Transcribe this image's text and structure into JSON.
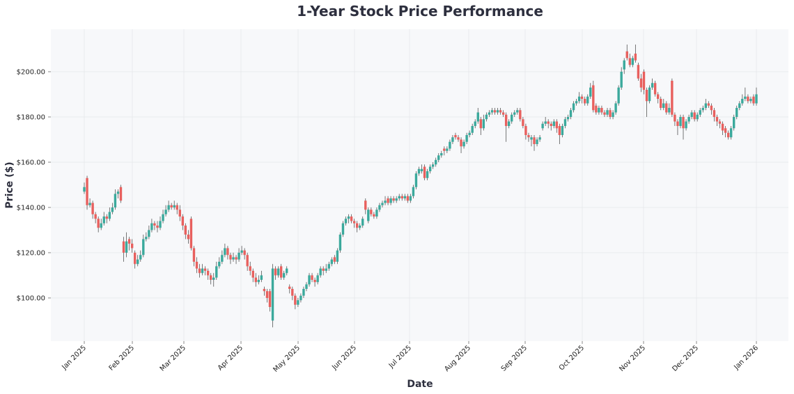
{
  "chart_data": {
    "type": "candlestick",
    "title": "1-Year Stock Price Performance",
    "xlabel": "Date",
    "ylabel": "Price ($)",
    "ylim": [
      81,
      219
    ],
    "grid": true,
    "colors": {
      "up": "#3ba99c",
      "down": "#e8605e",
      "plot_bg": "#f7f8fa"
    },
    "y_ticks": [
      "$100.00",
      "$120.00",
      "$140.00",
      "$160.00",
      "$180.00",
      "$200.00"
    ],
    "y_tick_values": [
      100,
      120,
      140,
      160,
      180,
      200
    ],
    "x_ticks": [
      "Jan 2025",
      "Feb 2025",
      "Mar 2025",
      "Apr 2025",
      "May 2025",
      "Jun 2025",
      "Jul 2025",
      "Aug 2025",
      "Sep 2025",
      "Oct 2025",
      "Nov 2025",
      "Dec 2025",
      "Jan 2026"
    ],
    "ohlc_columns": [
      "open",
      "high",
      "low",
      "close"
    ],
    "ohlc": [
      [
        147,
        151,
        146,
        149
      ],
      [
        153,
        154,
        139,
        141
      ],
      [
        141,
        144,
        140,
        142
      ],
      [
        142,
        143,
        135,
        137
      ],
      [
        137,
        138,
        133,
        135
      ],
      [
        135,
        136,
        129,
        131
      ],
      [
        131,
        135,
        130,
        133
      ],
      [
        133,
        138,
        132,
        136
      ],
      [
        136,
        137,
        133,
        135
      ],
      [
        135,
        140,
        134,
        138
      ],
      [
        138,
        142,
        137,
        140
      ],
      [
        140,
        148,
        139,
        146
      ],
      [
        146,
        148,
        144,
        147
      ],
      [
        149,
        150,
        142,
        143
      ],
      [
        125,
        127,
        116,
        120
      ],
      [
        120,
        129,
        118,
        125
      ],
      [
        126,
        127,
        121,
        124
      ],
      [
        124,
        126,
        120,
        122
      ],
      [
        120,
        121,
        113,
        115
      ],
      [
        115,
        119,
        114,
        117
      ],
      [
        117,
        121,
        116,
        119
      ],
      [
        119,
        128,
        118,
        126
      ],
      [
        126,
        129,
        125,
        127
      ],
      [
        127,
        132,
        126,
        130
      ],
      [
        130,
        135,
        129,
        133
      ],
      [
        133,
        134,
        130,
        132
      ],
      [
        132,
        134,
        129,
        131
      ],
      [
        131,
        136,
        130,
        134
      ],
      [
        134,
        139,
        133,
        137
      ],
      [
        137,
        141,
        136,
        139
      ],
      [
        139,
        143,
        138,
        141
      ],
      [
        141,
        142,
        139,
        140
      ],
      [
        140,
        143,
        139,
        141
      ],
      [
        141,
        142,
        137,
        139
      ],
      [
        139,
        141,
        134,
        136
      ],
      [
        136,
        137,
        130,
        132
      ],
      [
        132,
        133,
        126,
        128
      ],
      [
        128,
        130,
        124,
        126
      ],
      [
        135,
        136,
        121,
        122
      ],
      [
        122,
        123,
        114,
        116
      ],
      [
        116,
        118,
        111,
        113
      ],
      [
        113,
        115,
        109,
        111
      ],
      [
        111,
        115,
        110,
        113
      ],
      [
        113,
        114,
        110,
        112
      ],
      [
        112,
        113,
        108,
        110
      ],
      [
        110,
        111,
        106,
        108
      ],
      [
        108,
        111,
        105,
        109
      ],
      [
        109,
        116,
        108,
        114
      ],
      [
        114,
        118,
        113,
        116
      ],
      [
        116,
        121,
        115,
        119
      ],
      [
        119,
        124,
        118,
        122
      ],
      [
        122,
        123,
        117,
        119
      ],
      [
        119,
        120,
        115,
        117
      ],
      [
        117,
        120,
        116,
        118
      ],
      [
        118,
        119,
        115,
        117
      ],
      [
        117,
        122,
        116,
        120
      ],
      [
        120,
        123,
        119,
        121
      ],
      [
        121,
        122,
        117,
        119
      ],
      [
        119,
        120,
        112,
        114
      ],
      [
        114,
        116,
        110,
        112
      ],
      [
        112,
        113,
        107,
        109
      ],
      [
        109,
        111,
        105,
        107
      ],
      [
        107,
        110,
        106,
        108
      ],
      [
        108,
        112,
        107,
        110
      ],
      [
        104,
        105,
        101,
        103
      ],
      [
        103,
        104,
        98,
        100
      ],
      [
        103,
        104,
        94,
        96
      ],
      [
        90,
        115,
        87,
        113
      ],
      [
        113,
        114,
        108,
        110
      ],
      [
        110,
        114,
        109,
        113
      ],
      [
        114,
        115,
        108,
        109
      ],
      [
        109,
        112,
        108,
        111
      ],
      [
        111,
        114,
        110,
        113
      ],
      [
        105,
        106,
        102,
        104
      ],
      [
        104,
        105,
        99,
        101
      ],
      [
        101,
        102,
        95,
        97
      ],
      [
        97,
        100,
        96,
        99
      ],
      [
        99,
        102,
        98,
        101
      ],
      [
        101,
        105,
        100,
        104
      ],
      [
        104,
        107,
        103,
        106
      ],
      [
        106,
        111,
        105,
        110
      ],
      [
        110,
        111,
        107,
        108
      ],
      [
        108,
        109,
        105,
        107
      ],
      [
        107,
        111,
        106,
        110
      ],
      [
        110,
        114,
        109,
        113
      ],
      [
        113,
        114,
        110,
        112
      ],
      [
        112,
        115,
        111,
        113
      ],
      [
        113,
        116,
        112,
        115
      ],
      [
        115,
        118,
        114,
        117
      ],
      [
        118,
        119,
        115,
        116
      ],
      [
        116,
        122,
        115,
        121
      ],
      [
        121,
        129,
        120,
        128
      ],
      [
        128,
        134,
        127,
        133
      ],
      [
        133,
        136,
        132,
        135
      ],
      [
        135,
        137,
        133,
        136
      ],
      [
        136,
        137,
        133,
        134
      ],
      [
        134,
        135,
        131,
        133
      ],
      [
        133,
        134,
        129,
        131
      ],
      [
        131,
        133,
        130,
        132
      ],
      [
        132,
        136,
        131,
        135
      ],
      [
        143,
        144,
        137,
        139
      ],
      [
        134,
        140,
        133,
        139
      ],
      [
        139,
        140,
        136,
        137
      ],
      [
        137,
        138,
        135,
        136
      ],
      [
        136,
        140,
        135,
        139
      ],
      [
        139,
        142,
        138,
        141
      ],
      [
        141,
        143,
        140,
        142
      ],
      [
        142,
        145,
        141,
        143
      ],
      [
        144,
        145,
        141,
        142
      ],
      [
        142,
        145,
        141,
        144
      ],
      [
        144,
        145,
        142,
        143
      ],
      [
        143,
        145,
        142,
        144
      ],
      [
        144,
        146,
        143,
        145
      ],
      [
        145,
        146,
        143,
        144
      ],
      [
        144,
        146,
        143,
        145
      ],
      [
        145,
        146,
        142,
        143
      ],
      [
        143,
        146,
        142,
        145
      ],
      [
        145,
        150,
        144,
        149
      ],
      [
        149,
        156,
        148,
        155
      ],
      [
        155,
        158,
        154,
        157
      ],
      [
        156,
        159,
        155,
        157
      ],
      [
        158,
        159,
        152,
        153
      ],
      [
        153,
        157,
        152,
        156
      ],
      [
        156,
        159,
        155,
        158
      ],
      [
        158,
        160,
        157,
        159
      ],
      [
        159,
        162,
        158,
        161
      ],
      [
        161,
        164,
        160,
        163
      ],
      [
        163,
        165,
        162,
        164
      ],
      [
        166,
        167,
        163,
        165
      ],
      [
        165,
        167,
        164,
        166
      ],
      [
        166,
        170,
        165,
        169
      ],
      [
        169,
        172,
        168,
        171
      ],
      [
        172,
        173,
        170,
        171
      ],
      [
        171,
        172,
        169,
        170
      ],
      [
        170,
        171,
        164,
        167
      ],
      [
        167,
        170,
        166,
        169
      ],
      [
        169,
        173,
        168,
        172
      ],
      [
        172,
        174,
        171,
        173
      ],
      [
        173,
        177,
        172,
        176
      ],
      [
        176,
        179,
        175,
        178
      ],
      [
        178,
        184,
        177,
        182
      ],
      [
        179,
        180,
        172,
        175
      ],
      [
        175,
        181,
        174,
        179
      ],
      [
        179,
        182,
        178,
        181
      ],
      [
        181,
        183,
        180,
        182
      ],
      [
        182,
        184,
        181,
        183
      ],
      [
        183,
        184,
        181,
        182
      ],
      [
        182,
        184,
        181,
        183
      ],
      [
        183,
        184,
        181,
        182
      ],
      [
        182,
        183,
        180,
        181
      ],
      [
        181,
        182,
        169,
        176
      ],
      [
        176,
        179,
        175,
        178
      ],
      [
        178,
        182,
        177,
        181
      ],
      [
        181,
        183,
        180,
        182
      ],
      [
        182,
        184,
        181,
        183
      ],
      [
        183,
        184,
        178,
        179
      ],
      [
        179,
        180,
        175,
        176
      ],
      [
        176,
        177,
        170,
        172
      ],
      [
        172,
        173,
        169,
        171
      ],
      [
        170,
        172,
        167,
        171
      ],
      [
        171,
        172,
        165,
        168
      ],
      [
        168,
        171,
        167,
        170
      ],
      [
        170,
        172,
        169,
        171
      ],
      [
        175,
        178,
        174,
        177
      ],
      [
        177,
        180,
        176,
        178
      ],
      [
        178,
        179,
        175,
        177
      ],
      [
        177,
        178,
        174,
        176
      ],
      [
        176,
        179,
        175,
        178
      ],
      [
        178,
        179,
        173,
        175
      ],
      [
        176,
        177,
        168,
        172
      ],
      [
        172,
        177,
        171,
        176
      ],
      [
        176,
        180,
        175,
        179
      ],
      [
        179,
        181,
        178,
        180
      ],
      [
        180,
        184,
        179,
        183
      ],
      [
        183,
        187,
        182,
        186
      ],
      [
        186,
        188,
        185,
        187
      ],
      [
        187,
        191,
        186,
        189
      ],
      [
        189,
        190,
        186,
        188
      ],
      [
        188,
        189,
        185,
        186
      ],
      [
        186,
        190,
        185,
        189
      ],
      [
        189,
        195,
        188,
        193
      ],
      [
        194,
        196,
        182,
        183
      ],
      [
        185,
        186,
        181,
        182
      ],
      [
        182,
        185,
        181,
        184
      ],
      [
        184,
        185,
        181,
        182
      ],
      [
        182,
        183,
        180,
        181
      ],
      [
        181,
        184,
        180,
        183
      ],
      [
        183,
        184,
        179,
        180
      ],
      [
        180,
        183,
        179,
        182
      ],
      [
        182,
        187,
        181,
        186
      ],
      [
        186,
        194,
        185,
        193
      ],
      [
        193,
        202,
        192,
        200
      ],
      [
        201,
        206,
        199,
        205
      ],
      [
        209,
        212,
        205,
        206
      ],
      [
        206,
        208,
        202,
        203
      ],
      [
        203,
        207,
        202,
        206
      ],
      [
        208,
        212,
        204,
        205
      ],
      [
        203,
        204,
        196,
        197
      ],
      [
        197,
        199,
        191,
        193
      ],
      [
        200,
        201,
        190,
        192
      ],
      [
        192,
        193,
        180,
        187
      ],
      [
        187,
        194,
        186,
        193
      ],
      [
        193,
        197,
        192,
        195
      ],
      [
        195,
        196,
        189,
        190
      ],
      [
        190,
        191,
        186,
        188
      ],
      [
        188,
        189,
        183,
        184
      ],
      [
        184,
        188,
        183,
        186
      ],
      [
        186,
        187,
        181,
        182
      ],
      [
        182,
        186,
        181,
        184
      ],
      [
        196,
        197,
        180,
        181
      ],
      [
        181,
        182,
        176,
        178
      ],
      [
        178,
        179,
        172,
        176
      ],
      [
        176,
        181,
        175,
        180
      ],
      [
        180,
        181,
        170,
        175
      ],
      [
        175,
        179,
        174,
        178
      ],
      [
        178,
        181,
        177,
        180
      ],
      [
        180,
        183,
        179,
        182
      ],
      [
        182,
        183,
        178,
        179
      ],
      [
        179,
        182,
        178,
        181
      ],
      [
        181,
        184,
        180,
        183
      ],
      [
        183,
        185,
        182,
        184
      ],
      [
        184,
        188,
        183,
        186
      ],
      [
        186,
        187,
        184,
        185
      ],
      [
        185,
        186,
        181,
        183
      ],
      [
        183,
        184,
        178,
        180
      ],
      [
        180,
        181,
        176,
        178
      ],
      [
        178,
        179,
        175,
        177
      ],
      [
        177,
        178,
        172,
        174
      ],
      [
        175,
        176,
        171,
        173
      ],
      [
        173,
        174,
        170,
        171
      ],
      [
        171,
        176,
        170,
        175
      ],
      [
        175,
        181,
        174,
        180
      ],
      [
        180,
        185,
        179,
        184
      ],
      [
        184,
        187,
        183,
        186
      ],
      [
        186,
        190,
        185,
        188
      ],
      [
        188,
        193,
        187,
        189
      ],
      [
        189,
        190,
        186,
        187
      ],
      [
        187,
        189,
        186,
        188
      ],
      [
        189,
        190,
        185,
        186
      ],
      [
        186,
        193,
        185,
        190
      ]
    ]
  }
}
